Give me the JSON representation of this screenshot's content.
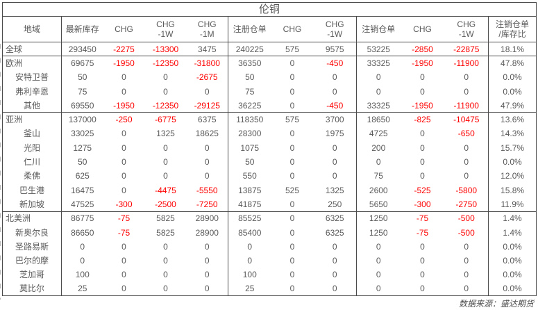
{
  "colors": {
    "text": "#595959",
    "negative": "#ff0000",
    "border": "#4a4a4a"
  },
  "footer": {
    "source": "数据来源：盛达期货"
  },
  "chart_data": {
    "type": "table",
    "title": "伦铜",
    "region_column_header": "地域",
    "columns": [
      {
        "l1": "最新库存",
        "l2": ""
      },
      {
        "l1": "CHG",
        "l2": ""
      },
      {
        "l1": "CHG",
        "l2": "-1W"
      },
      {
        "l1": "CHG",
        "l2": "-1M"
      },
      {
        "l1": "注册仓单",
        "l2": ""
      },
      {
        "l1": "CHG",
        "l2": ""
      },
      {
        "l1": "CHG",
        "l2": "-1W"
      },
      {
        "l1": "注销仓单",
        "l2": ""
      },
      {
        "l1": "CHG",
        "l2": ""
      },
      {
        "l1": "CHG",
        "l2": "-1W"
      },
      {
        "l1": "注销仓单",
        "l2": "/库存比"
      }
    ],
    "rows": [
      {
        "region": "全球",
        "level": "group",
        "separator_below": true,
        "values": [
          "293450",
          "-2275",
          "-13300",
          "3475",
          "240225",
          "575",
          "9575",
          "53225",
          "-2850",
          "-22875",
          "18.1%"
        ]
      },
      {
        "region": "欧洲",
        "level": "group",
        "separator_below": false,
        "values": [
          "69675",
          "-1950",
          "-12350",
          "-31800",
          "36350",
          "0",
          "-450",
          "33325",
          "-1950",
          "-11900",
          "47.8%"
        ]
      },
      {
        "region": "安特卫普",
        "level": "sub",
        "separator_below": false,
        "values": [
          "50",
          "0",
          "0",
          "-2675",
          "50",
          "0",
          "0",
          "0",
          "0",
          "0",
          "0.0%"
        ]
      },
      {
        "region": "弗利辛恩",
        "level": "sub",
        "separator_below": false,
        "values": [
          "75",
          "0",
          "0",
          "0",
          "75",
          "0",
          "0",
          "0",
          "0",
          "0",
          "0.0%"
        ]
      },
      {
        "region": "其他",
        "level": "sub",
        "separator_below": true,
        "values": [
          "69550",
          "-1950",
          "-12350",
          "-29125",
          "36225",
          "0",
          "-450",
          "33325",
          "-1950",
          "-11900",
          "47.9%"
        ]
      },
      {
        "region": "亚洲",
        "level": "group",
        "separator_below": false,
        "values": [
          "137000",
          "-250",
          "-6775",
          "6375",
          "118350",
          "575",
          "3700",
          "18650",
          "-825",
          "-10475",
          "13.6%"
        ]
      },
      {
        "region": "釜山",
        "level": "sub",
        "separator_below": false,
        "values": [
          "33025",
          "0",
          "1325",
          "18625",
          "28300",
          "0",
          "1975",
          "4725",
          "0",
          "-650",
          "14.3%"
        ]
      },
      {
        "region": "光阳",
        "level": "sub",
        "separator_below": false,
        "values": [
          "1275",
          "0",
          "0",
          "0",
          "1075",
          "0",
          "0",
          "200",
          "0",
          "0",
          "15.7%"
        ]
      },
      {
        "region": "仁川",
        "level": "sub",
        "separator_below": false,
        "values": [
          "50",
          "0",
          "0",
          "0",
          "50",
          "0",
          "0",
          "0",
          "0",
          "0",
          "0.0%"
        ]
      },
      {
        "region": "柔佛",
        "level": "sub",
        "separator_below": false,
        "values": [
          "625",
          "0",
          "0",
          "0",
          "550",
          "0",
          "0",
          "75",
          "0",
          "0",
          "12.0%"
        ]
      },
      {
        "region": "巴生港",
        "level": "sub",
        "separator_below": false,
        "values": [
          "16475",
          "0",
          "-4475",
          "-5550",
          "13875",
          "525",
          "1325",
          "2600",
          "-525",
          "-5800",
          "15.8%"
        ]
      },
      {
        "region": "新加坡",
        "level": "sub",
        "separator_below": true,
        "values": [
          "47525",
          "-300",
          "-2500",
          "-7250",
          "41875",
          "0",
          "250",
          "5650",
          "-300",
          "-2750",
          "11.9%"
        ]
      },
      {
        "region": "北美洲",
        "level": "group",
        "separator_below": false,
        "values": [
          "86775",
          "-75",
          "5825",
          "28900",
          "85525",
          "0",
          "6325",
          "1250",
          "-75",
          "-500",
          "1.4%"
        ]
      },
      {
        "region": "新奥尔良",
        "level": "sub",
        "separator_below": false,
        "values": [
          "86650",
          "-75",
          "5825",
          "28900",
          "85400",
          "0",
          "6325",
          "1250",
          "-75",
          "-500",
          "1.4%"
        ]
      },
      {
        "region": "圣路易斯",
        "level": "sub",
        "separator_below": false,
        "values": [
          "0",
          "0",
          "0",
          "0",
          "0",
          "0",
          "0",
          "0",
          "0",
          "0",
          "0.0%"
        ]
      },
      {
        "region": "巴尔的摩",
        "level": "sub",
        "separator_below": false,
        "values": [
          "0",
          "0",
          "0",
          "0",
          "0",
          "0",
          "0",
          "0",
          "0",
          "0",
          "0.0%"
        ]
      },
      {
        "region": "芝加哥",
        "level": "sub",
        "separator_below": false,
        "values": [
          "100",
          "0",
          "0",
          "0",
          "100",
          "0",
          "0",
          "0",
          "0",
          "0",
          "0.0%"
        ]
      },
      {
        "region": "莫比尔",
        "level": "sub",
        "separator_below": false,
        "values": [
          "25",
          "0",
          "0",
          "0",
          "25",
          "0",
          "0",
          "0",
          "0",
          "0",
          "0.0%"
        ]
      }
    ]
  }
}
